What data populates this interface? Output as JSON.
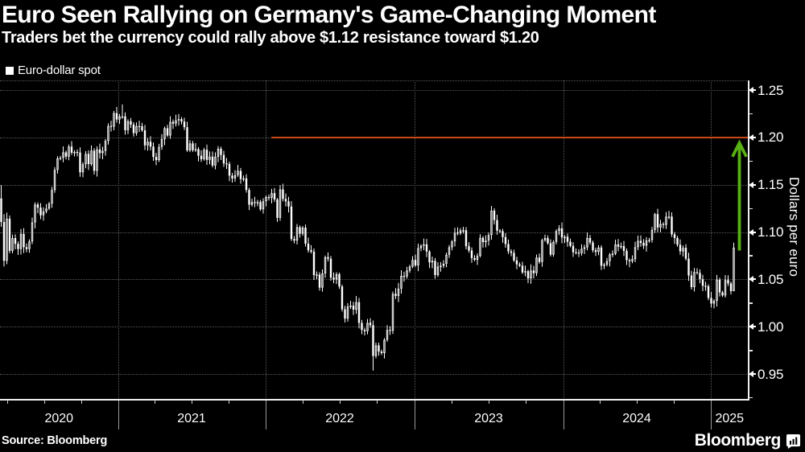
{
  "header": {
    "title": "Euro Seen Rallying on Germany's Game-Changing Moment",
    "subtitle": "Traders bet the currency could rally above $1.12 resistance toward $1.20"
  },
  "legend": {
    "label": "Euro-dollar spot"
  },
  "footer": {
    "source": "Source: Bloomberg",
    "brand": "Bloomberg"
  },
  "colors": {
    "background": "#000000",
    "candle": "#ffffff",
    "grid": "#595959",
    "resistance_red": "#c7491a",
    "arrow_green": "#58b014",
    "axis": "#f0f0f0",
    "text": "#ffffff"
  },
  "chart_data": {
    "type": "candlestick",
    "title": "Euro-dollar spot",
    "ylabel": "Dollars per euro",
    "ylim": [
      0.924,
      1.26
    ],
    "yticks": [
      1.25,
      1.2,
      1.15,
      1.1,
      1.05,
      1.0,
      0.95
    ],
    "xticks": [
      "2020",
      "2021",
      "2022",
      "2023",
      "2024",
      "2025"
    ],
    "grid": "dotted",
    "legend_position": "top-left",
    "annotations": {
      "resistance_line": {
        "value": 1.2,
        "starts_at": "2022-01"
      },
      "projection_arrow": {
        "from": 1.075,
        "to": 1.194,
        "direction": "up"
      }
    },
    "series": [
      {
        "name": "EUR/USD spot, weekly closes",
        "start": "2020-03-13",
        "interval": "weekly",
        "closes": [
          1.1106,
          1.0696,
          1.1141,
          1.0801,
          1.0936,
          1.0875,
          1.082,
          1.098,
          1.084,
          1.082,
          1.0901,
          1.1101,
          1.1291,
          1.1258,
          1.1177,
          1.1218,
          1.1248,
          1.13,
          1.1444,
          1.1656,
          1.1778,
          1.1785,
          1.1842,
          1.1797,
          1.1903,
          1.1838,
          1.1846,
          1.184,
          1.1631,
          1.1716,
          1.1826,
          1.1718,
          1.186,
          1.1647,
          1.1873,
          1.1834,
          1.1857,
          1.1963,
          1.2121,
          1.2114,
          1.2257,
          1.2189,
          1.2221,
          1.2222,
          1.2076,
          1.2171,
          1.2136,
          1.2045,
          1.212,
          1.2118,
          1.2075,
          1.1915,
          1.1954,
          1.1903,
          1.1794,
          1.176,
          1.1899,
          1.1982,
          1.2097,
          1.202,
          1.2164,
          1.2145,
          1.2181,
          1.2193,
          1.2167,
          1.2108,
          1.1863,
          1.1936,
          1.1865,
          1.1876,
          1.1806,
          1.177,
          1.187,
          1.1762,
          1.1797,
          1.1703,
          1.1795,
          1.188,
          1.1815,
          1.1725,
          1.172,
          1.1595,
          1.1567,
          1.1601,
          1.1646,
          1.156,
          1.1567,
          1.1445,
          1.1289,
          1.1317,
          1.1311,
          1.1317,
          1.124,
          1.1326,
          1.137,
          1.1361,
          1.1411,
          1.1344,
          1.115,
          1.145,
          1.135,
          1.1324,
          1.127,
          1.0926,
          1.091,
          1.1051,
          1.0982,
          1.1046,
          1.0877,
          1.0808,
          1.0793,
          1.0545,
          1.0551,
          1.0412,
          1.0563,
          1.0735,
          1.0718,
          1.0518,
          1.0499,
          1.0555,
          1.0425,
          1.0184,
          1.0085,
          1.0213,
          1.0222,
          1.018,
          1.0259,
          1.004,
          0.9966,
          0.9952,
          1.0041,
          1.0016,
          0.969,
          0.9802,
          0.9737,
          0.9721,
          0.9861,
          0.9965,
          0.9957,
          1.0347,
          1.0325,
          1.0402,
          1.0537,
          1.053,
          1.0592,
          1.0635,
          1.0705,
          1.0648,
          1.083,
          1.0855,
          1.087,
          1.0794,
          1.0679,
          1.0695,
          1.0546,
          1.0634,
          1.0643,
          1.0665,
          1.076,
          1.0839,
          1.09,
          1.0993,
          1.0987,
          1.1018,
          1.1019,
          1.085,
          1.0805,
          1.0725,
          1.0707,
          1.0748,
          1.0939,
          1.0893,
          1.0909,
          1.0968,
          1.1226,
          1.1126,
          1.1015,
          1.1009,
          1.0947,
          1.0873,
          1.0796,
          1.0779,
          1.07,
          1.0658,
          1.0645,
          1.0573,
          1.0586,
          1.051,
          1.0594,
          1.0565,
          1.073,
          1.0684,
          1.0914,
          1.0936,
          1.0882,
          1.0761,
          1.0895,
          1.101,
          1.1039,
          1.0943,
          1.095,
          1.0897,
          1.0854,
          1.0787,
          1.0784,
          1.0777,
          1.0822,
          1.0838,
          1.0937,
          1.0889,
          1.0808,
          1.079,
          1.0836,
          1.0644,
          1.0656,
          1.0693,
          1.0763,
          1.0771,
          1.0869,
          1.0846,
          1.0852,
          1.0801,
          1.0704,
          1.0692,
          1.0713,
          1.084,
          1.0907,
          1.0885,
          1.0856,
          1.0911,
          1.0916,
          1.1022,
          1.1189,
          1.1048,
          1.1085,
          1.1075,
          1.1163,
          1.1163,
          1.0976,
          1.0937,
          1.0866,
          1.0796,
          1.0833,
          1.0718,
          1.0541,
          1.0418,
          1.0577,
          1.0568,
          1.0502,
          1.0432,
          1.0427,
          1.0304,
          1.0244,
          1.0273,
          1.0496,
          1.0362,
          1.033,
          1.0492,
          1.0457,
          1.0375,
          1.0835
        ],
        "extremes": [
          {
            "i": 0,
            "h": 1.1495,
            "l": 1.1055
          },
          {
            "i": 1,
            "h": 1.1189,
            "l": 1.0636
          },
          {
            "i": 43,
            "h": 1.2349
          },
          {
            "i": 132,
            "l": 0.9536
          },
          {
            "i": 174,
            "h": 1.1276
          },
          {
            "i": 232,
            "h": 1.1202
          },
          {
            "i": 260,
            "h": 1.0888,
            "l": 1.0375
          }
        ]
      }
    ]
  }
}
